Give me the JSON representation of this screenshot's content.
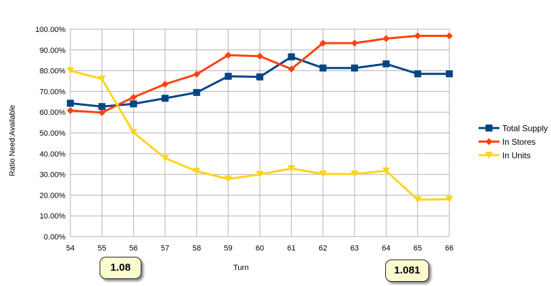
{
  "chart_data": {
    "type": "line",
    "title": "",
    "xlabel": "Turn",
    "ylabel": "Ratio Need:Available",
    "categories": [
      "54",
      "55",
      "56",
      "57",
      "58",
      "59",
      "60",
      "61",
      "62",
      "63",
      "64",
      "65",
      "66"
    ],
    "ylim": [
      0,
      1
    ],
    "y_ticks": [
      "0.00%",
      "10.00%",
      "20.00%",
      "30.00%",
      "40.00%",
      "50.00%",
      "60.00%",
      "70.00%",
      "80.00%",
      "90.00%",
      "100.00%"
    ],
    "grid": true,
    "legend_position": "right",
    "series": [
      {
        "name": "Total Supply",
        "color": "#004586",
        "marker": "square",
        "values": [
          0.643,
          0.627,
          0.64,
          0.667,
          0.695,
          0.773,
          0.77,
          0.867,
          0.813,
          0.813,
          0.833,
          0.785,
          0.785
        ]
      },
      {
        "name": "In Stores",
        "color": "#ff420e",
        "marker": "diamond",
        "values": [
          0.608,
          0.598,
          0.672,
          0.735,
          0.783,
          0.875,
          0.87,
          0.808,
          0.933,
          0.933,
          0.955,
          0.968,
          0.968
        ]
      },
      {
        "name": "In Units",
        "color": "#ffd320",
        "marker": "triangle-down",
        "values": [
          0.8,
          0.76,
          0.502,
          0.378,
          0.315,
          0.278,
          0.3,
          0.328,
          0.302,
          0.302,
          0.317,
          0.178,
          0.18
        ]
      }
    ],
    "annotations": [
      "1.08",
      "1.081"
    ]
  }
}
